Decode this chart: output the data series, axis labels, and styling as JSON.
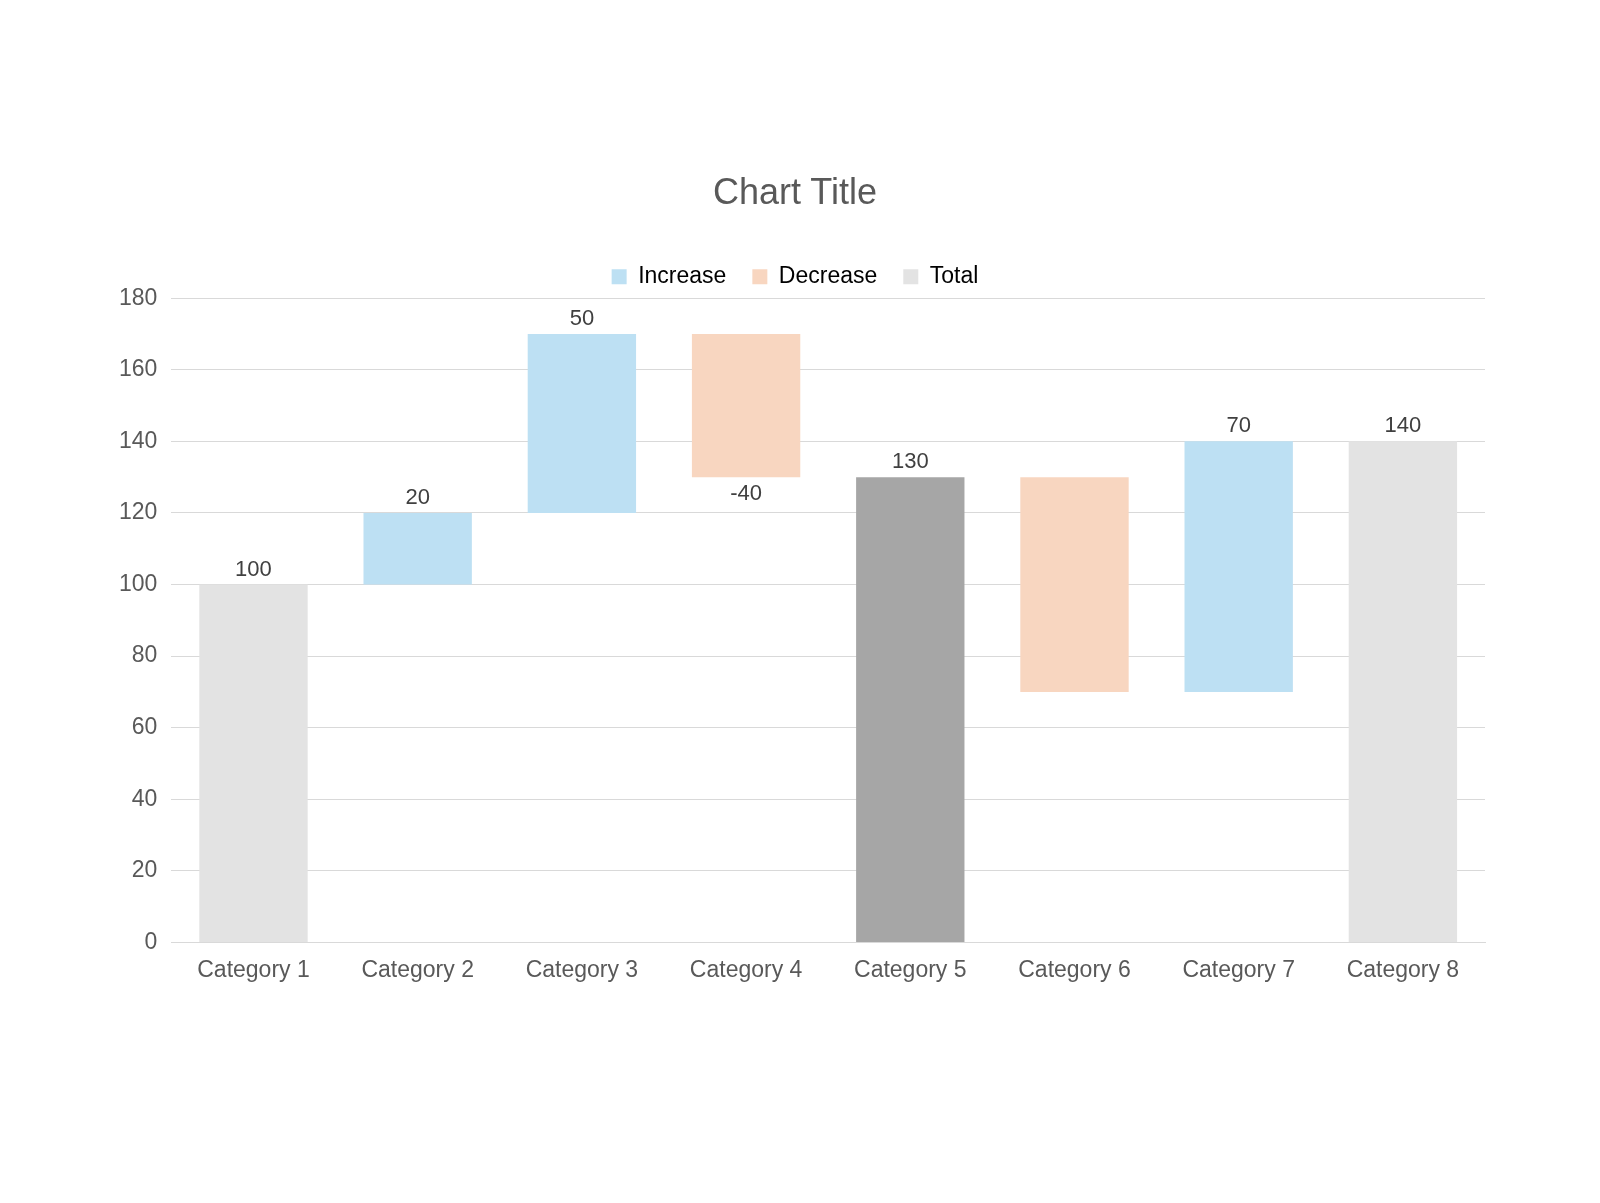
{
  "chart_data": {
    "type": "bar",
    "title": "Chart Title",
    "categories": [
      "Category 1",
      "Category 2",
      "Category 3",
      "Category 4",
      "Category 5",
      "Category 6",
      "Category 7",
      "Category 8"
    ],
    "series": [
      {
        "name": "Increase",
        "color": "#bde0f3",
        "base": [
          null,
          100,
          120,
          null,
          null,
          null,
          70,
          null
        ],
        "values": [
          null,
          20,
          50,
          null,
          null,
          null,
          70,
          null
        ]
      },
      {
        "name": "Decrease",
        "color": "#f8d6c0",
        "base": [
          null,
          null,
          null,
          170,
          null,
          130,
          null,
          null
        ],
        "values": [
          null,
          null,
          null,
          -40,
          null,
          -60,
          null,
          null
        ]
      },
      {
        "name": "Total",
        "color": "#e3e3e3",
        "colors": [
          "#e3e3e3",
          null,
          null,
          null,
          "#a6a6a6",
          null,
          null,
          "#e3e3e3"
        ],
        "values": [
          100,
          null,
          null,
          null,
          130,
          null,
          null,
          140
        ]
      }
    ],
    "value_labels": [
      "100",
      "20",
      "50",
      "-40",
      "130",
      null,
      "70",
      "140"
    ],
    "ylim": [
      0,
      180
    ],
    "yticks": [
      0,
      20,
      40,
      60,
      80,
      100,
      120,
      140,
      160,
      180
    ],
    "grid": "y",
    "legend": "top"
  }
}
